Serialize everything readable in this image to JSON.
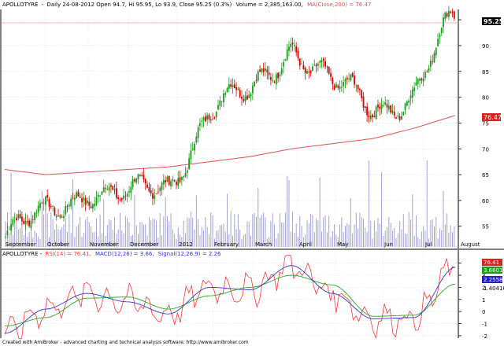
{
  "header": {
    "ticker": "APOLLOTYRE",
    "info": "Daily 24-08-2012 Open 94.7, Hi 95.95, Lo 93.9, Close 95.25 (0.3%)",
    "volume": "Volume = 2,385,163.00,",
    "ma_label": "MA(Close,200) = 76.47"
  },
  "price_panel": {
    "last_price_label": "95.25",
    "ma_badge": "76.47",
    "y_ticks": [
      "55",
      "60",
      "65",
      "70",
      "75",
      "80",
      "85",
      "90",
      "95"
    ]
  },
  "indicator_panel": {
    "header_ticker": "APOLLOTYRE -",
    "rsi_label": "RSI(14) = 76.41,",
    "macd_label": "MACD(12,26) = 3.66,",
    "signal_label": "Signal(12,26,9) = 2.26",
    "value_badges": [
      "76.41",
      "3.6601",
      "2.25585",
      "1.40416"
    ],
    "y_ticks": [
      "4",
      "3",
      "2",
      "1",
      "0",
      "-1",
      "-2"
    ]
  },
  "month_labels": [
    "September",
    "October",
    "November",
    "December",
    "2012",
    "February",
    "March",
    "April",
    "May",
    "Jun",
    "Jul",
    "August"
  ],
  "footer": "Created with AmiBroker - advanced charting and technical analysis software. http://www.amibroker.com",
  "colors": {
    "up": "#1a9a1a",
    "down": "#d40000",
    "ma": "#e05050",
    "volume": "#9999cc",
    "rsi": "#ff3333",
    "macd": "#3333cc",
    "signal": "#22aa22",
    "grid": "#c8d4e6"
  },
  "chart_data": [
    {
      "type": "candlestick",
      "title": "APOLLOTYRE - Daily 24-08-2012",
      "ylim": [
        51,
        97
      ],
      "x": [
        "Sep",
        "Oct",
        "Nov",
        "Dec",
        "Jan",
        "Feb",
        "Mar",
        "Apr",
        "May",
        "Jun",
        "Jul",
        "Aug"
      ],
      "series": [
        {
          "name": "Close",
          "values": [
            53,
            57,
            63,
            60,
            63,
            78,
            80,
            91,
            82,
            78,
            81,
            95
          ]
        },
        {
          "name": "MA(Close,200)",
          "values": [
            66,
            65,
            65.5,
            66,
            66.5,
            67.5,
            68.5,
            70,
            71,
            72,
            74,
            76.47
          ]
        }
      ]
    },
    {
      "type": "line",
      "title": "RSI(14), MACD(12,26), Signal(12,26,9)",
      "ylim": [
        -2.2,
        4.3
      ],
      "x": [
        "Sep",
        "Oct",
        "Nov",
        "Dec",
        "Jan",
        "Feb",
        "Mar",
        "Apr",
        "May",
        "Jun",
        "Jul",
        "Aug"
      ],
      "series": [
        {
          "name": "MACD(12,26)",
          "values": [
            -1.8,
            0.2,
            1.5,
            0.8,
            -0.2,
            2.0,
            1.8,
            3.8,
            1.5,
            -0.6,
            -0.5,
            3.66
          ]
        },
        {
          "name": "Signal(12,26,9)",
          "values": [
            -1.2,
            -0.5,
            1.1,
            1.2,
            0.2,
            1.3,
            2.0,
            3.0,
            2.2,
            -0.4,
            -0.3,
            2.26
          ]
        }
      ]
    }
  ]
}
